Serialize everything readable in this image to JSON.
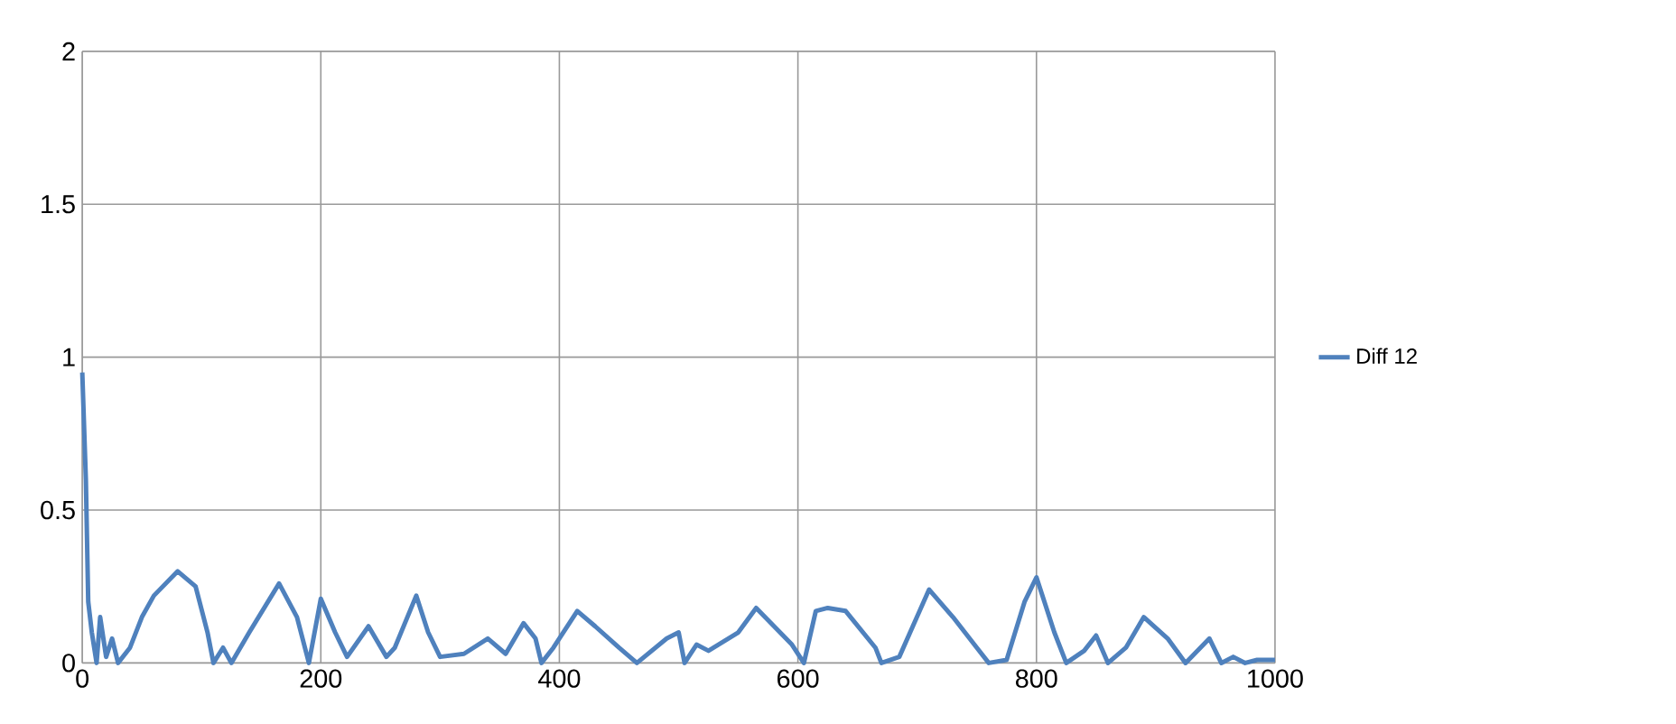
{
  "chart_data": {
    "type": "line",
    "xlim": [
      0,
      1000
    ],
    "ylim": [
      0,
      2
    ],
    "xticks": [
      0,
      200,
      400,
      600,
      800,
      1000
    ],
    "yticks": [
      0,
      0.5,
      1,
      1.5,
      2
    ],
    "grid": true,
    "legend": "right",
    "marker": "none",
    "line_style": "solid",
    "series": [
      {
        "name": "Diff 12",
        "color": "#4f81bd",
        "x": [
          0,
          3,
          5,
          8,
          12,
          15,
          20,
          25,
          30,
          40,
          50,
          60,
          80,
          95,
          105,
          110,
          118,
          125,
          140,
          165,
          180,
          190,
          200,
          212,
          222,
          240,
          255,
          262,
          280,
          290,
          300,
          320,
          340,
          355,
          370,
          380,
          385,
          395,
          415,
          430,
          450,
          465,
          490,
          500,
          505,
          515,
          525,
          550,
          565,
          580,
          595,
          605,
          615,
          625,
          640,
          665,
          670,
          685,
          710,
          730,
          750,
          760,
          775,
          790,
          800,
          815,
          825,
          840,
          850,
          860,
          875,
          890,
          910,
          925,
          945,
          955,
          965,
          975,
          985,
          1000
        ],
        "values": [
          0.95,
          0.6,
          0.2,
          0.1,
          0.0,
          0.15,
          0.02,
          0.08,
          0.0,
          0.05,
          0.15,
          0.22,
          0.3,
          0.25,
          0.1,
          0.0,
          0.05,
          0.0,
          0.1,
          0.26,
          0.15,
          0.0,
          0.21,
          0.1,
          0.02,
          0.12,
          0.02,
          0.05,
          0.22,
          0.1,
          0.02,
          0.03,
          0.08,
          0.03,
          0.13,
          0.08,
          0.0,
          0.05,
          0.17,
          0.12,
          0.05,
          0.0,
          0.08,
          0.1,
          0.0,
          0.06,
          0.04,
          0.1,
          0.18,
          0.12,
          0.06,
          0.0,
          0.17,
          0.18,
          0.17,
          0.05,
          0.0,
          0.02,
          0.24,
          0.15,
          0.05,
          0.0,
          0.01,
          0.2,
          0.28,
          0.1,
          0.0,
          0.04,
          0.09,
          0.0,
          0.05,
          0.15,
          0.08,
          0.0,
          0.08,
          0.0,
          0.02,
          0.0,
          0.01,
          0.01
        ]
      }
    ]
  }
}
